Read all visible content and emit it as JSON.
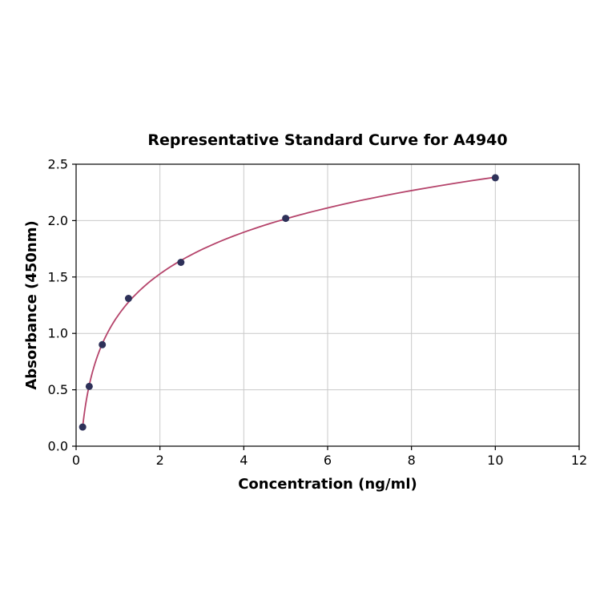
{
  "chart_data": {
    "type": "scatter",
    "title": "Representative Standard Curve for A4940",
    "xlabel": "Concentration (ng/ml)",
    "ylabel": "Absorbance (450nm)",
    "x": [
      0.156,
      0.313,
      0.625,
      1.25,
      2.5,
      5,
      10
    ],
    "y": [
      0.17,
      0.53,
      0.9,
      1.31,
      1.63,
      2.02,
      2.38
    ],
    "fit": "logarithmic",
    "xlim": [
      0,
      12
    ],
    "ylim": [
      0,
      2.5
    ],
    "xticks": [
      0,
      2,
      4,
      6,
      8,
      10,
      12
    ],
    "yticks": [
      0,
      0.5,
      1,
      1.5,
      2,
      2.5
    ],
    "grid": true,
    "legend_position": "none",
    "colors": {
      "line": "#b5446b",
      "marker": "#2e3159",
      "grid": "#c9c9c9",
      "axis": "#000000",
      "background": "#ffffff"
    }
  }
}
